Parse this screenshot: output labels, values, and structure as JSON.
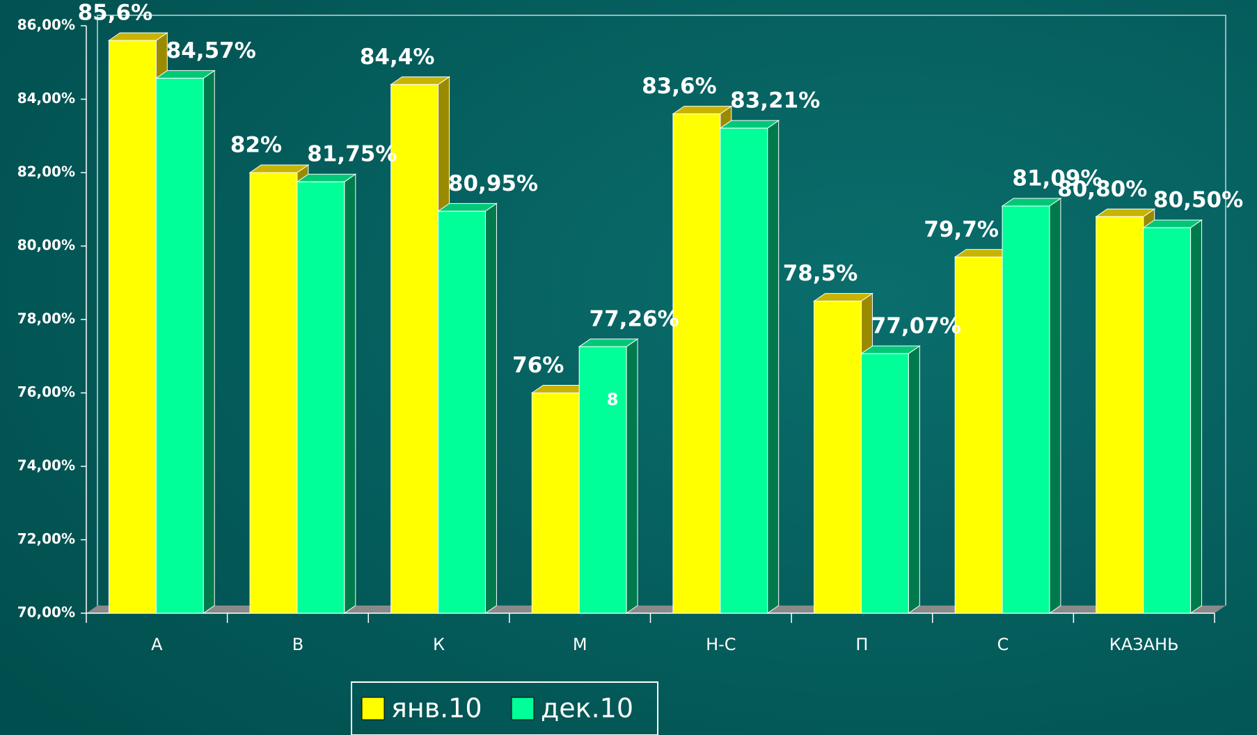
{
  "chart_data": {
    "type": "bar3d",
    "categories": [
      "А",
      "В",
      "К",
      "М",
      "Н-С",
      "П",
      "С",
      "КАЗАНЬ"
    ],
    "series": [
      {
        "name": "янв.10",
        "color": "#ffff00",
        "values": [
          85.6,
          82,
          84.4,
          76,
          83.6,
          78.5,
          79.7,
          80.8
        ],
        "value_labels": [
          "85,6%",
          "82%",
          "84,4%",
          "76%",
          "83,6%",
          "78,5%",
          "79,7%",
          "80,80%"
        ]
      },
      {
        "name": "дек.10",
        "color": "#00ff99",
        "values": [
          84.57,
          81.75,
          80.95,
          77.26,
          83.21,
          77.07,
          81.09,
          80.5
        ],
        "value_labels": [
          "84,57%",
          "81,75%",
          "80,95%",
          "77,26%",
          "83,21%",
          "77,07%",
          "81,09%",
          "80,50%"
        ]
      }
    ],
    "annotation": "8",
    "ylim": [
      70,
      86
    ],
    "yticks": [
      {
        "value": 70,
        "label": "70,00%"
      },
      {
        "value": 72,
        "label": "72,00%"
      },
      {
        "value": 74,
        "label": "74,00%"
      },
      {
        "value": 76,
        "label": "76,00%"
      },
      {
        "value": 78,
        "label": "78,00%"
      },
      {
        "value": 80,
        "label": "80,00%"
      },
      {
        "value": 82,
        "label": "82,00%"
      },
      {
        "value": 84,
        "label": "84,00%"
      },
      {
        "value": 86,
        "label": "86,00%"
      }
    ],
    "legend": "bottom"
  }
}
